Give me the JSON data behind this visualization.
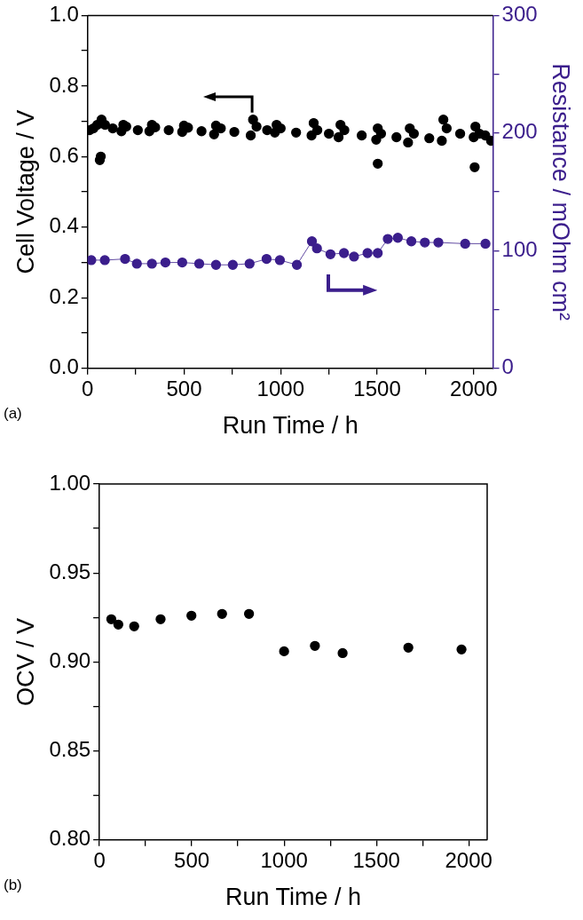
{
  "chart_data": [
    {
      "type": "scatter",
      "xlabel": "Run Time / h",
      "ylabel": "Cell Voltage / V",
      "y2label": "Resistance / mOhm cm²",
      "annotations": [
        "(a)"
      ],
      "marker": "circle",
      "xlim": [
        0,
        2100
      ],
      "xticks": [
        0,
        {
          "value": 250,
          "label": null
        },
        500,
        {
          "value": 750,
          "label": null
        },
        1000,
        {
          "value": 1250,
          "label": null
        },
        1500,
        {
          "value": 1750,
          "label": null
        },
        2000
      ],
      "ylim": [
        0,
        1
      ],
      "yticks": [
        {
          "value": 0,
          "label": "0.0"
        },
        {
          "value": 0.1,
          "label": null
        },
        {
          "value": 0.2,
          "label": "0.2"
        },
        {
          "value": 0.3,
          "label": null
        },
        {
          "value": 0.4,
          "label": "0.4"
        },
        {
          "value": 0.5,
          "label": null
        },
        {
          "value": 0.6,
          "label": "0.6"
        },
        {
          "value": 0.7,
          "label": null
        },
        {
          "value": 0.8,
          "label": "0.8"
        },
        {
          "value": 0.9,
          "label": null
        },
        {
          "value": 1,
          "label": "1.0"
        }
      ],
      "y2lim": [
        0,
        300
      ],
      "y2ticks": [
        0,
        {
          "value": 50,
          "label": null
        },
        100,
        {
          "value": 150,
          "label": null
        },
        200,
        {
          "value": 250,
          "label": null
        },
        300
      ],
      "series": [
        {
          "color": "#000000",
          "x": [
            10,
            30,
            50,
            72,
            90,
            130,
            175,
            185,
            200,
            260,
            320,
            333,
            350,
            420,
            490,
            499,
            520,
            590,
            655,
            665,
            690,
            760,
            845,
            857,
            875,
            930,
            970,
            979,
            1000,
            1080,
            1160,
            1171,
            1190,
            1250,
            1300,
            1310,
            1330,
            1420,
            1495,
            1503,
            1520,
            1600,
            1660,
            1669,
            1690,
            1770,
            1835,
            1843,
            1860,
            1930,
            2000,
            2009,
            2030,
            2060,
            2090,
            63,
            68,
            1503,
            2005
          ],
          "values": [
            0.675,
            0.68,
            0.69,
            0.705,
            0.69,
            0.68,
            0.672,
            0.69,
            0.685,
            0.675,
            0.672,
            0.69,
            0.683,
            0.675,
            0.67,
            0.688,
            0.682,
            0.672,
            0.663,
            0.688,
            0.68,
            0.67,
            0.66,
            0.705,
            0.685,
            0.675,
            0.668,
            0.69,
            0.68,
            0.668,
            0.66,
            0.695,
            0.675,
            0.665,
            0.655,
            0.69,
            0.675,
            0.66,
            0.648,
            0.68,
            0.665,
            0.655,
            0.64,
            0.68,
            0.665,
            0.652,
            0.645,
            0.705,
            0.68,
            0.665,
            0.655,
            0.685,
            0.665,
            0.66,
            0.645,
            0.59,
            0.6,
            0.58,
            0.57
          ]
        },
        {
          "type": "line",
          "axis": "y2",
          "color": "#3b1e8c",
          "line_style": "solid",
          "x": [
            19,
            89,
            194,
            255,
            333,
            403,
            490,
            578,
            665,
            752,
            839,
            927,
            996,
            1084,
            1162,
            1188,
            1258,
            1328,
            1380,
            1450,
            1503,
            1555,
            1607,
            1677,
            1747,
            1817,
            1956,
            2061
          ],
          "values": [
            92,
            92,
            93,
            89,
            89,
            90,
            90,
            89,
            88,
            88,
            89,
            93,
            92,
            88,
            108,
            102,
            97,
            98,
            95,
            98,
            98,
            110,
            111,
            108,
            107,
            107,
            106,
            106
          ]
        }
      ]
    },
    {
      "type": "scatter",
      "xlabel": "Run Time / h",
      "ylabel": "OCV / V",
      "annotations": [
        "(b)"
      ],
      "marker": "circle",
      "xlim": [
        0,
        2100
      ],
      "xticks": [
        0,
        {
          "value": 250,
          "label": null
        },
        500,
        {
          "value": 750,
          "label": null
        },
        1000,
        {
          "value": 1250,
          "label": null
        },
        1500,
        {
          "value": 1750,
          "label": null
        },
        2000
      ],
      "ylim": [
        0.8,
        1
      ],
      "yticks": [
        {
          "value": 0.8,
          "label": "0.80"
        },
        {
          "value": 0.825,
          "label": null
        },
        {
          "value": 0.85,
          "label": "0.85"
        },
        {
          "value": 0.875,
          "label": null
        },
        {
          "value": 0.9,
          "label": "0.90"
        },
        {
          "value": 0.925,
          "label": null
        },
        {
          "value": 0.95,
          "label": "0.95"
        },
        {
          "value": 0.975,
          "label": null
        },
        {
          "value": 1,
          "label": "1.00"
        }
      ],
      "series": [
        {
          "color": "#000000",
          "x": [
            64,
            102,
            188,
            331,
            498,
            664,
            810,
            1000,
            1167,
            1317,
            1673,
            1961
          ],
          "values": [
            0.924,
            0.921,
            0.92,
            0.924,
            0.926,
            0.927,
            0.927,
            0.906,
            0.909,
            0.905,
            0.908,
            0.907
          ]
        }
      ]
    }
  ]
}
